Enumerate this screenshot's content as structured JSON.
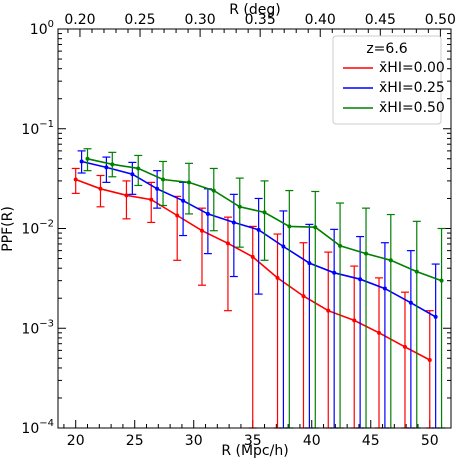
{
  "chart_data": {
    "type": "line",
    "xlabel": "R (Mpc/h)",
    "ylabel": "PPF(R)",
    "top_xlabel": "R (deg)",
    "xlim": [
      18.5,
      51.8
    ],
    "ylim_log10": [
      -4,
      0
    ],
    "yscale": "log",
    "x_ticks": [
      20,
      25,
      30,
      35,
      40,
      45,
      50
    ],
    "x_tick_labels": [
      "20",
      "25",
      "30",
      "35",
      "40",
      "45",
      "50"
    ],
    "top_ticks_deg": [
      0.2,
      0.25,
      0.3,
      0.35,
      0.4,
      0.45,
      0.5
    ],
    "top_tick_labels": [
      "0.20",
      "0.25",
      "0.30",
      "0.35",
      "0.40",
      "0.45",
      "0.50"
    ],
    "deg_to_mpc": 101.8,
    "y_tick_exponents": [
      0,
      -1,
      -2,
      -3,
      -4
    ],
    "y_tick_base": "10",
    "legend": {
      "title": "z=6.6",
      "placement": "upper right",
      "entries": [
        "x̄HI=0.00",
        "x̄HI=0.25",
        "x̄HI=0.50"
      ]
    },
    "grid": false,
    "series": [
      {
        "name": "x̄HI=0.00",
        "color": "#ff0000",
        "x": [
          20.0,
          22.1,
          24.3,
          26.4,
          28.6,
          30.7,
          32.9,
          35.0,
          37.1,
          39.3,
          41.4,
          43.6,
          45.7,
          47.9,
          50.0
        ],
        "y": [
          0.031,
          0.025,
          0.0215,
          0.0195,
          0.0135,
          0.0095,
          0.0071,
          0.0052,
          0.0032,
          0.0021,
          0.0015,
          0.0012,
          0.0009,
          0.00065,
          0.00048
        ],
        "yerr_low": [
          0.0225,
          0.0165,
          0.0125,
          0.0115,
          0.0048,
          0.0027,
          0.0015,
          0.0001,
          0.0001,
          0.0001,
          0.0001,
          0.0001,
          0.0001,
          0.0001,
          0.0001
        ],
        "yerr_high": [
          0.04,
          0.034,
          0.03,
          0.029,
          0.021,
          0.016,
          0.013,
          0.0105,
          0.0088,
          0.0072,
          0.0058,
          0.0042,
          0.0032,
          0.0023,
          0.0015
        ]
      },
      {
        "name": "x̄HI=0.25",
        "color": "#0000ff",
        "x": [
          20.5,
          22.6,
          24.8,
          26.9,
          29.1,
          31.2,
          33.4,
          35.5,
          37.6,
          39.8,
          41.9,
          44.1,
          46.2,
          48.4,
          50.5
        ],
        "y": [
          0.047,
          0.041,
          0.035,
          0.025,
          0.019,
          0.014,
          0.0115,
          0.0097,
          0.0066,
          0.0045,
          0.0036,
          0.0031,
          0.0025,
          0.0018,
          0.0013
        ],
        "yerr_low": [
          0.036,
          0.029,
          0.022,
          0.016,
          0.0085,
          0.0056,
          0.0033,
          0.0022,
          0.0001,
          0.0001,
          0.0001,
          0.0001,
          0.0001,
          0.0001,
          0.0001
        ],
        "yerr_high": [
          0.06,
          0.052,
          0.046,
          0.038,
          0.029,
          0.025,
          0.022,
          0.02,
          0.015,
          0.011,
          0.0098,
          0.0083,
          0.0072,
          0.006,
          0.0044
        ]
      },
      {
        "name": "x̄HI=0.50",
        "color": "#008000",
        "x": [
          21.0,
          23.1,
          25.3,
          27.4,
          29.6,
          31.7,
          33.9,
          36.0,
          38.1,
          40.3,
          42.4,
          44.6,
          46.7,
          48.9,
          51.0
        ],
        "y": [
          0.05,
          0.044,
          0.04,
          0.031,
          0.029,
          0.024,
          0.0165,
          0.0145,
          0.0105,
          0.0103,
          0.0067,
          0.0056,
          0.0048,
          0.0037,
          0.003
        ],
        "yerr_low": [
          0.038,
          0.033,
          0.027,
          0.017,
          0.014,
          0.0095,
          0.0065,
          0.0048,
          0.0001,
          0.0001,
          0.0001,
          0.0001,
          0.0001,
          0.0001,
          0.0001
        ],
        "yerr_high": [
          0.063,
          0.058,
          0.054,
          0.047,
          0.045,
          0.04,
          0.032,
          0.03,
          0.024,
          0.0235,
          0.018,
          0.016,
          0.0138,
          0.0118,
          0.01
        ]
      }
    ]
  }
}
